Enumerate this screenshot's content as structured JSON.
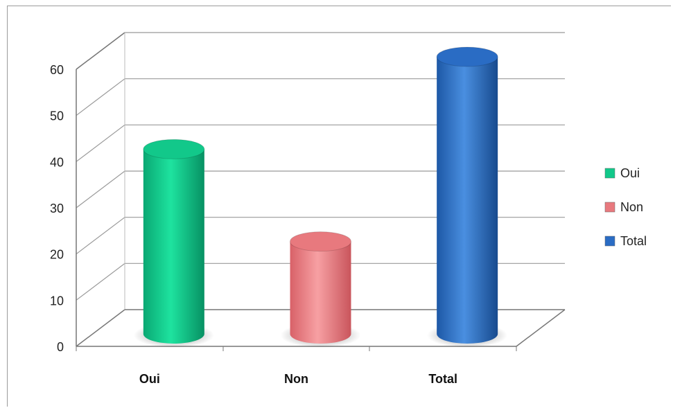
{
  "chart_data": {
    "type": "bar",
    "title": "",
    "xlabel": "",
    "ylabel": "",
    "categories": [
      "Oui",
      "Non",
      "Total"
    ],
    "values": [
      40,
      20,
      60
    ],
    "ylim": [
      0,
      60
    ],
    "yticks": [
      "0",
      "10",
      "20",
      "30",
      "40",
      "50",
      "60"
    ],
    "grid": true,
    "legend": {
      "placement": "right",
      "entries": [
        "Oui",
        "Non",
        "Total"
      ]
    },
    "colors": [
      "#12c88a",
      "#e8797e",
      "#2a6cc4"
    ]
  }
}
